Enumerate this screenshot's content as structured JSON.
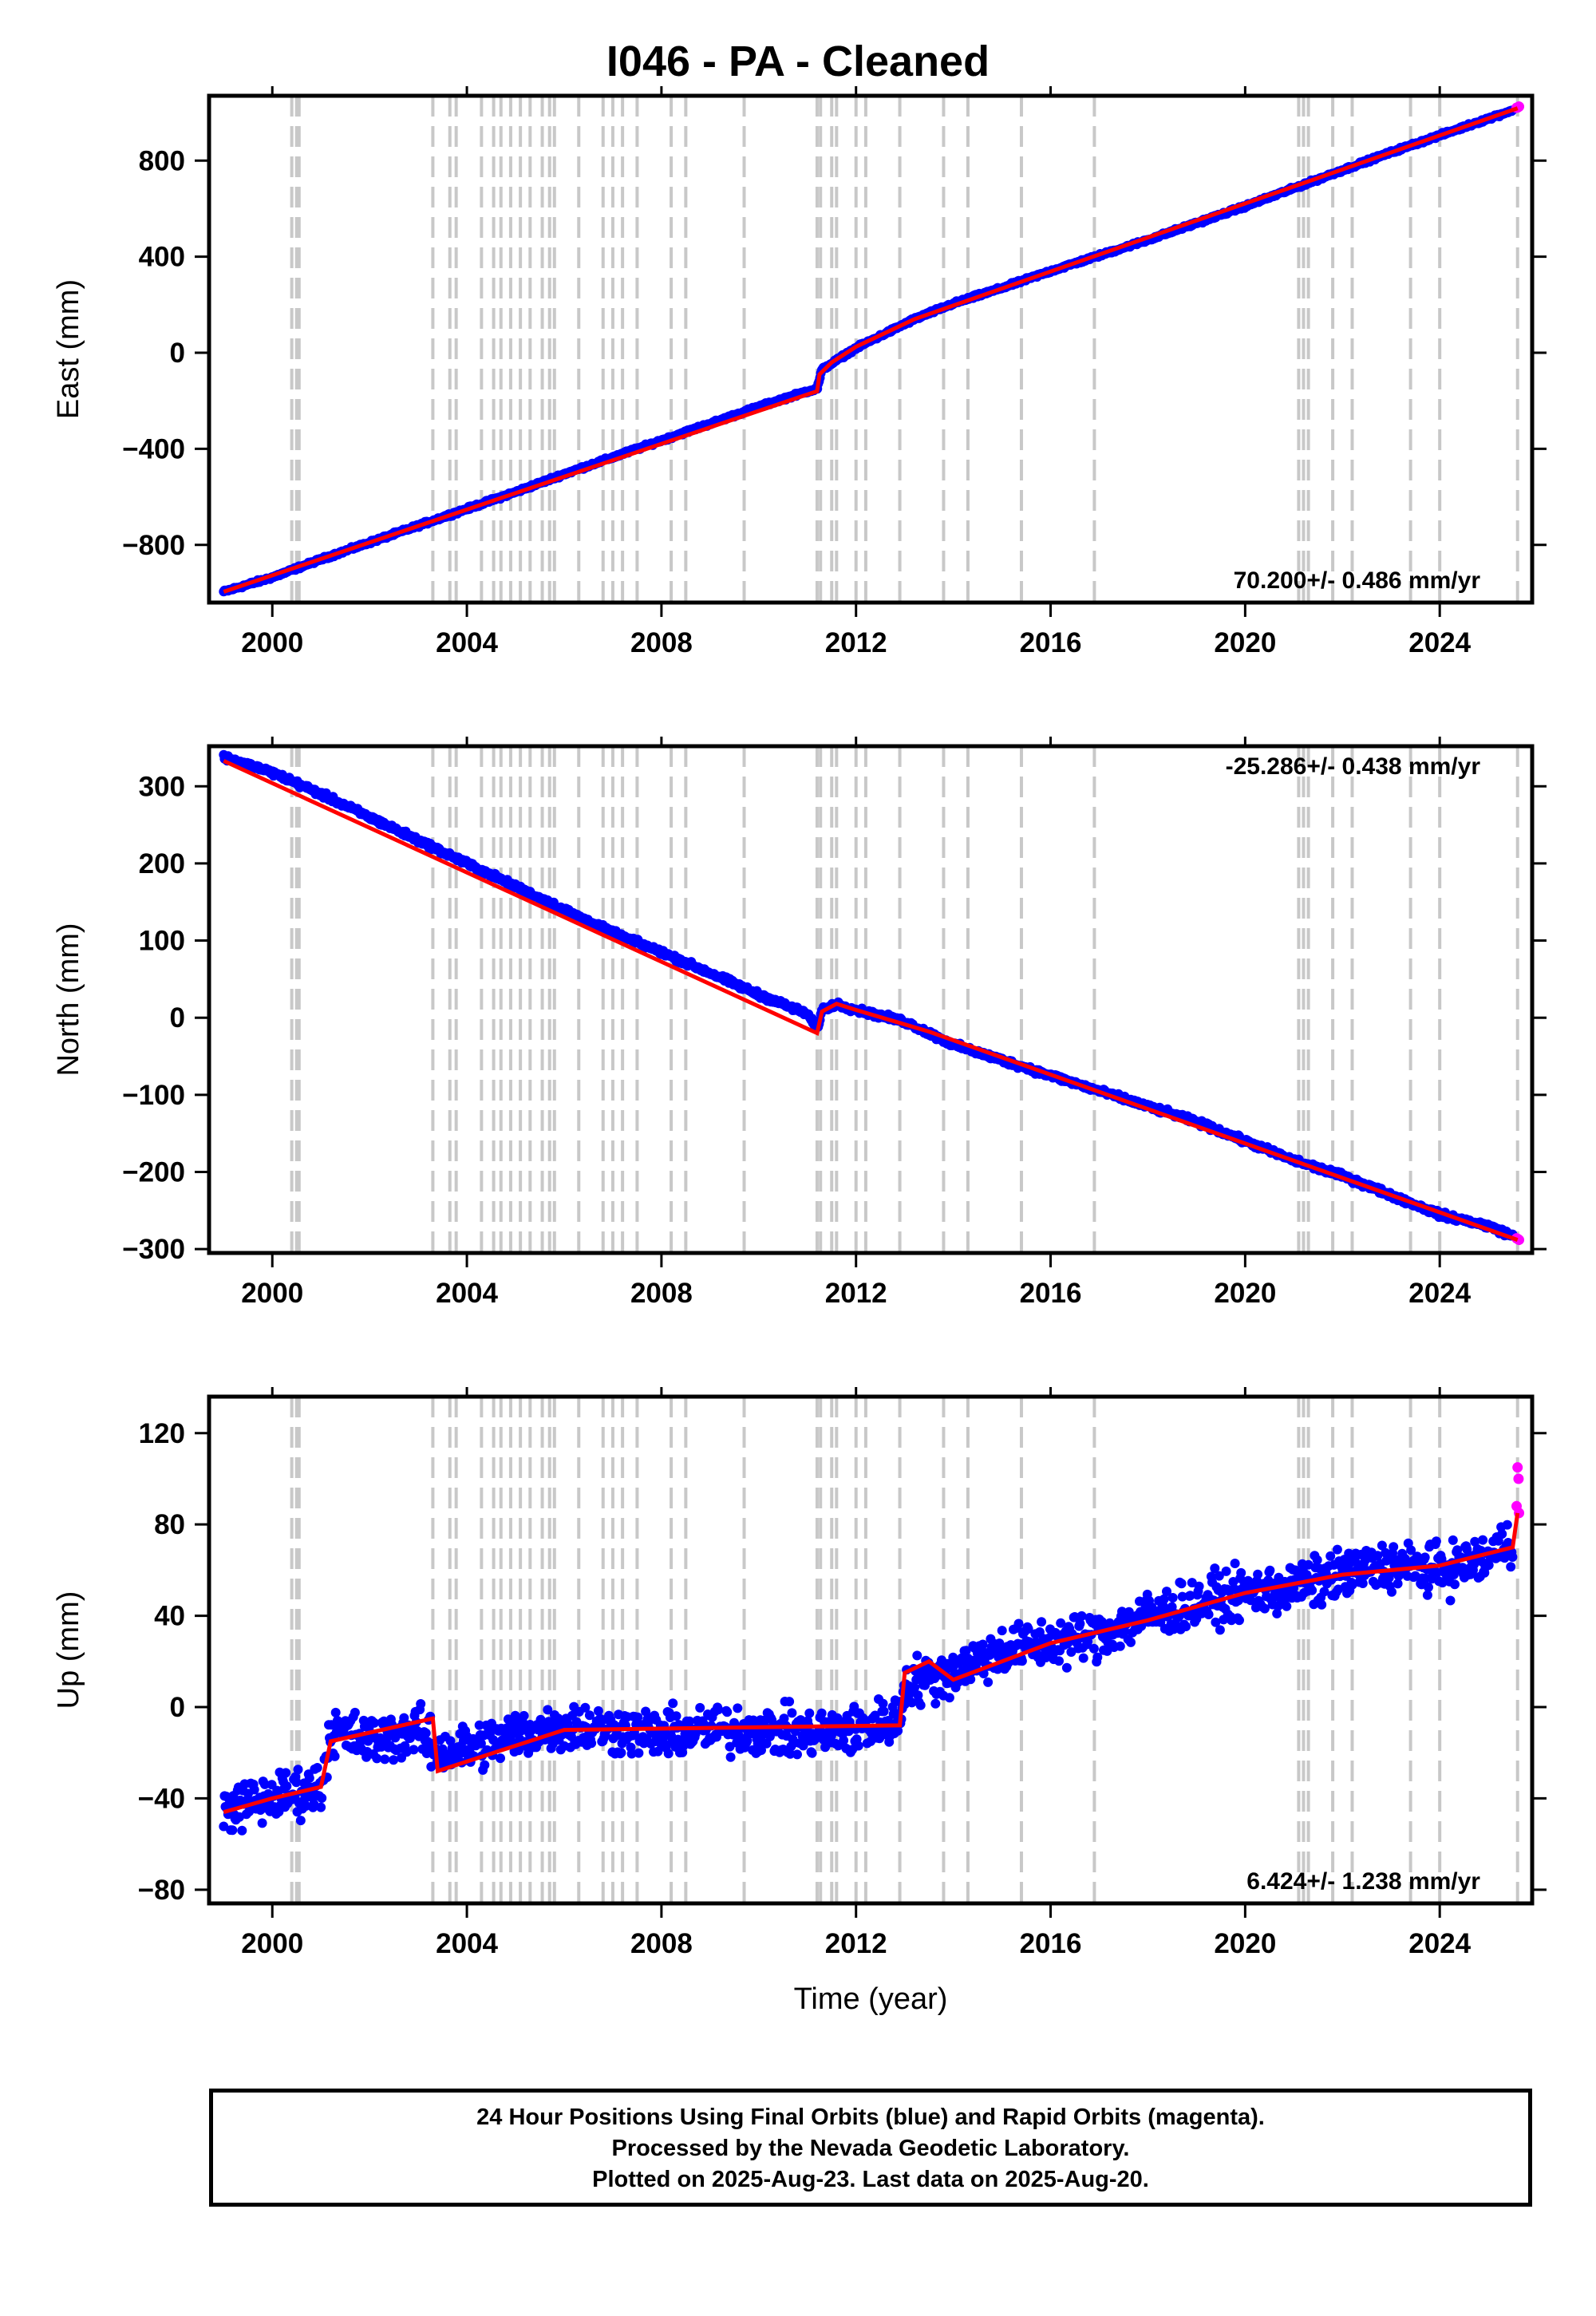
{
  "title": "I046  - PA - Cleaned",
  "footer": {
    "line1": "24 Hour Positions Using Final Orbits (blue) and Rapid Orbits (magenta).",
    "line2": "Processed by the Nevada Geodetic Laboratory.",
    "line3": "Plotted on 2025-Aug-23. Last data on 2025-Aug-20."
  },
  "colors": {
    "final_orbits": "#0000ff",
    "rapid_orbits": "#ff00ff",
    "model_fit": "#ff0000",
    "event_lines": "#c8c8c8"
  },
  "chart_data": [
    {
      "type": "scatter",
      "name": "east",
      "ylabel": "East (mm)",
      "xlabel": "",
      "xlim": [
        1998.7,
        2025.9
      ],
      "ylim": [
        -1040,
        1070
      ],
      "xticks": [
        2000,
        2004,
        2008,
        2012,
        2016,
        2020,
        2024
      ],
      "yticks": [
        -800,
        -400,
        0,
        400,
        800
      ],
      "rate_label": "70.200+/- 0.486 mm/yr",
      "rate_label_position": "bottom-right",
      "event_lines": [
        2000.4,
        2000.5,
        2000.55,
        2003.3,
        2003.65,
        2003.78,
        2004.3,
        2004.55,
        2004.7,
        2004.9,
        2005.1,
        2005.3,
        2005.55,
        2005.7,
        2005.8,
        2006.3,
        2006.8,
        2007.0,
        2007.2,
        2007.5,
        2008.2,
        2008.5,
        2009.7,
        2011.2,
        2011.27,
        2011.5,
        2011.6,
        2012.0,
        2012.2,
        2012.9,
        2013.8,
        2014.3,
        2015.4,
        2016.9,
        2021.1,
        2021.2,
        2021.3,
        2021.8,
        2022.2,
        2023.4,
        2024.0,
        2025.6
      ],
      "series": [
        {
          "name": "Final Orbits",
          "color": "#0000ff",
          "x": [
            1999.0,
            2000.0,
            2001.0,
            2002.0,
            2003.0,
            2004.0,
            2005.0,
            2006.0,
            2007.0,
            2008.0,
            2009.0,
            2010.0,
            2011.0,
            2011.2,
            2011.3,
            2012.0,
            2013.2,
            2014.0,
            2015.0,
            2016.0,
            2017.0,
            2018.0,
            2019.0,
            2020.0,
            2021.0,
            2022.0,
            2023.0,
            2024.0,
            2025.0,
            2025.5
          ],
          "y": [
            -995,
            -935,
            -860,
            -790,
            -720,
            -650,
            -580,
            -505,
            -435,
            -365,
            -295,
            -225,
            -160,
            -150,
            -70,
            20,
            140,
            205,
            270,
            340,
            405,
            470,
            540,
            610,
            685,
            760,
            835,
            905,
            975,
            1010
          ]
        },
        {
          "name": "Rapid Orbits",
          "color": "#ff00ff",
          "x": [
            2025.58,
            2025.61,
            2025.63
          ],
          "y": [
            1020,
            1022,
            1025
          ]
        },
        {
          "name": "Model",
          "color": "#ff0000",
          "x": [
            1999.0,
            2011.2,
            2011.25,
            2011.5,
            2012.0,
            2013.2,
            2025.6
          ],
          "y": [
            -995,
            -160,
            -90,
            -40,
            25,
            140,
            1018
          ]
        }
      ]
    },
    {
      "type": "scatter",
      "name": "north",
      "ylabel": "North (mm)",
      "xlabel": "",
      "xlim": [
        1998.7,
        2025.9
      ],
      "ylim": [
        -305,
        352
      ],
      "xticks": [
        2000,
        2004,
        2008,
        2012,
        2016,
        2020,
        2024
      ],
      "yticks": [
        -300,
        -200,
        -100,
        0,
        100,
        200,
        300
      ],
      "rate_label": "-25.286+/- 0.438 mm/yr",
      "rate_label_position": "top-right",
      "event_lines": [
        2000.4,
        2000.5,
        2000.55,
        2003.3,
        2003.65,
        2003.78,
        2004.3,
        2004.55,
        2004.7,
        2004.9,
        2005.1,
        2005.3,
        2005.55,
        2005.7,
        2005.8,
        2006.3,
        2006.8,
        2007.0,
        2007.2,
        2007.5,
        2008.2,
        2008.5,
        2009.7,
        2011.2,
        2011.27,
        2011.5,
        2011.6,
        2012.0,
        2012.2,
        2012.9,
        2013.8,
        2014.3,
        2015.4,
        2016.9,
        2021.1,
        2021.2,
        2021.3,
        2021.8,
        2022.2,
        2023.4,
        2024.0,
        2025.6
      ],
      "series": [
        {
          "name": "Final Orbits",
          "color": "#0000ff",
          "x": [
            1999.0,
            2000.0,
            2001.0,
            2002.0,
            2003.0,
            2004.0,
            2005.0,
            2006.0,
            2007.0,
            2008.0,
            2009.0,
            2010.0,
            2011.0,
            2011.2,
            2011.3,
            2011.6,
            2012.0,
            2013.0,
            2014.0,
            2015.0,
            2016.0,
            2017.0,
            2018.0,
            2019.0,
            2020.0,
            2021.0,
            2022.0,
            2023.0,
            2024.0,
            2025.0,
            2025.5
          ],
          "y": [
            338,
            318,
            290,
            260,
            230,
            200,
            170,
            140,
            110,
            85,
            58,
            30,
            5,
            -15,
            10,
            18,
            10,
            -5,
            -35,
            -55,
            -75,
            -95,
            -115,
            -135,
            -160,
            -185,
            -205,
            -230,
            -255,
            -270,
            -283
          ]
        },
        {
          "name": "Rapid Orbits",
          "color": "#ff00ff",
          "x": [
            2025.58,
            2025.61,
            2025.63
          ],
          "y": [
            -286,
            -287,
            -288
          ]
        },
        {
          "name": "Model",
          "color": "#ff0000",
          "x": [
            1999.0,
            2011.2,
            2011.3,
            2011.6,
            2012.0,
            2013.5,
            2025.6
          ],
          "y": [
            333,
            -20,
            8,
            18,
            10,
            -18,
            -288
          ]
        }
      ]
    },
    {
      "type": "scatter",
      "name": "up",
      "ylabel": "Up (mm)",
      "xlabel": "Time (year)",
      "xlim": [
        1998.7,
        2025.9
      ],
      "ylim": [
        -86,
        136
      ],
      "xticks": [
        2000,
        2004,
        2008,
        2012,
        2016,
        2020,
        2024
      ],
      "yticks": [
        -80,
        -40,
        0,
        40,
        80,
        120
      ],
      "rate_label": "6.424+/- 1.238 mm/yr",
      "rate_label_position": "bottom-right",
      "event_lines": [
        2000.4,
        2000.5,
        2000.55,
        2003.3,
        2003.65,
        2003.78,
        2004.3,
        2004.55,
        2004.7,
        2004.9,
        2005.1,
        2005.3,
        2005.55,
        2005.7,
        2005.8,
        2006.3,
        2006.8,
        2007.0,
        2007.2,
        2007.5,
        2008.2,
        2008.5,
        2009.7,
        2011.2,
        2011.27,
        2011.5,
        2011.6,
        2012.0,
        2012.2,
        2012.9,
        2013.8,
        2014.3,
        2015.4,
        2016.9,
        2021.1,
        2021.2,
        2021.3,
        2021.8,
        2022.2,
        2023.4,
        2024.0,
        2025.6
      ],
      "series": [
        {
          "name": "Final Orbits",
          "color": "#0000ff",
          "x": [
            1999.0,
            2000.0,
            2001.0,
            2001.2,
            2002.0,
            2003.0,
            2003.4,
            2004.0,
            2005.0,
            2006.0,
            2007.0,
            2008.0,
            2009.0,
            2010.0,
            2011.0,
            2012.0,
            2012.9,
            2013.0,
            2014.0,
            2014.2,
            2015.0,
            2016.0,
            2017.0,
            2018.0,
            2019.0,
            2020.0,
            2021.0,
            2022.0,
            2023.0,
            2024.0,
            2025.0,
            2025.5
          ],
          "y": [
            -45,
            -40,
            -35,
            -10,
            -15,
            -10,
            -20,
            -18,
            -12,
            -8,
            -10,
            -12,
            -10,
            -10,
            -12,
            -10,
            -5,
            10,
            15,
            18,
            25,
            28,
            32,
            40,
            45,
            50,
            52,
            58,
            62,
            60,
            65,
            75
          ]
        },
        {
          "name": "Rapid Orbits",
          "color": "#ff00ff",
          "x": [
            2025.58,
            2025.6,
            2025.62,
            2025.63
          ],
          "y": [
            88,
            105,
            100,
            85
          ]
        },
        {
          "name": "Model",
          "color": "#ff0000",
          "x": [
            1999.0,
            2000.0,
            2001.0,
            2001.2,
            2003.3,
            2003.4,
            2006.0,
            2012.9,
            2013.0,
            2013.5,
            2014.0,
            2016.0,
            2018.0,
            2020.0,
            2022.0,
            2024.0,
            2025.5,
            2025.6
          ],
          "y": [
            -46,
            -40,
            -35,
            -15,
            -5,
            -28,
            -10,
            -8,
            15,
            20,
            12,
            28,
            38,
            50,
            58,
            62,
            70,
            85
          ]
        }
      ]
    }
  ]
}
